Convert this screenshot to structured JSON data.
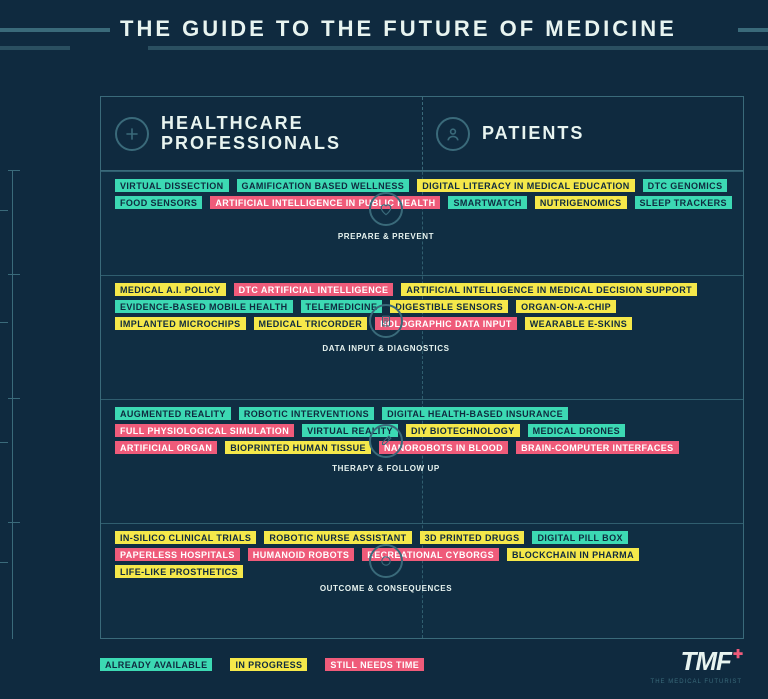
{
  "title": "The Guide to the Future of Medicine",
  "columns": {
    "left": "Healthcare Professionals",
    "right": "Patients"
  },
  "legend": {
    "available": "Already Available",
    "progress": "In Progress",
    "needs": "Still Needs Time"
  },
  "colors": {
    "available": "#3cd9b3",
    "progress": "#f5e84a",
    "needs": "#ef5b7a",
    "background": "#0f2a3f",
    "grid": "#3a6a7a"
  },
  "categories": [
    {
      "id": "prepare",
      "label": "Prepare & Prevent"
    },
    {
      "id": "data",
      "label": "Data Input & Diagnostics"
    },
    {
      "id": "therapy",
      "label": "Therapy & Follow Up"
    },
    {
      "id": "outcome",
      "label": "Outcome & Consequences"
    }
  ],
  "tags": {
    "prepare": [
      {
        "t": "Virtual Dissection",
        "c": "g"
      },
      {
        "t": "Gamification Based Wellness",
        "c": "g"
      },
      {
        "t": "Digital Literacy in Medical Education",
        "c": "y"
      },
      {
        "t": "DTC Genomics",
        "c": "g"
      },
      {
        "t": "Food Sensors",
        "c": "g"
      },
      {
        "t": "Artificial Intelligence in Public Health",
        "c": "p"
      },
      {
        "t": "Smartwatch",
        "c": "g"
      },
      {
        "t": "Nutrigenomics",
        "c": "y"
      },
      {
        "t": "Sleep Trackers",
        "c": "g"
      }
    ],
    "data": [
      {
        "t": "Medical A.I. Policy",
        "c": "y"
      },
      {
        "t": "DTC Artificial Intelligence",
        "c": "p"
      },
      {
        "t": "Artificial Intelligence in Medical Decision Support",
        "c": "y"
      },
      {
        "t": "Evidence-Based Mobile Health",
        "c": "g"
      },
      {
        "t": "Telemedicine",
        "c": "g"
      },
      {
        "t": "Digestible Sensors",
        "c": "y"
      },
      {
        "t": "Organ-on-a-Chip",
        "c": "y"
      },
      {
        "t": "Implanted Microchips",
        "c": "y"
      },
      {
        "t": "Medical Tricorder",
        "c": "y"
      },
      {
        "t": "Holographic Data Input",
        "c": "p"
      },
      {
        "t": "Wearable E-Skins",
        "c": "y"
      }
    ],
    "therapy": [
      {
        "t": "Augmented Reality",
        "c": "g"
      },
      {
        "t": "Robotic Interventions",
        "c": "g"
      },
      {
        "t": "Digital Health-Based Insurance",
        "c": "g"
      },
      {
        "t": "Full Physiological Simulation",
        "c": "p"
      },
      {
        "t": "Virtual Reality",
        "c": "g"
      },
      {
        "t": "DIY Biotechnology",
        "c": "y"
      },
      {
        "t": "Medical Drones",
        "c": "g"
      },
      {
        "t": "Artificial Organ",
        "c": "p"
      },
      {
        "t": "Bioprinted Human Tissue",
        "c": "y"
      },
      {
        "t": "Nanorobots in Blood",
        "c": "p"
      },
      {
        "t": "Brain-Computer Interfaces",
        "c": "p"
      }
    ],
    "outcome": [
      {
        "t": "In-Silico Clinical Trials",
        "c": "y"
      },
      {
        "t": "Robotic Nurse Assistant",
        "c": "y"
      },
      {
        "t": "3D Printed Drugs",
        "c": "y"
      },
      {
        "t": "Digital Pill Box",
        "c": "g"
      },
      {
        "t": "Paperless Hospitals",
        "c": "p"
      },
      {
        "t": "Humanoid Robots",
        "c": "p"
      },
      {
        "t": "Recreational Cyborgs",
        "c": "p"
      },
      {
        "t": "Blockchain in Pharma",
        "c": "y"
      },
      {
        "t": "Life-Like Prosthetics",
        "c": "y"
      }
    ]
  },
  "brand": {
    "name": "TMF",
    "sub": "The Medical Futurist"
  }
}
